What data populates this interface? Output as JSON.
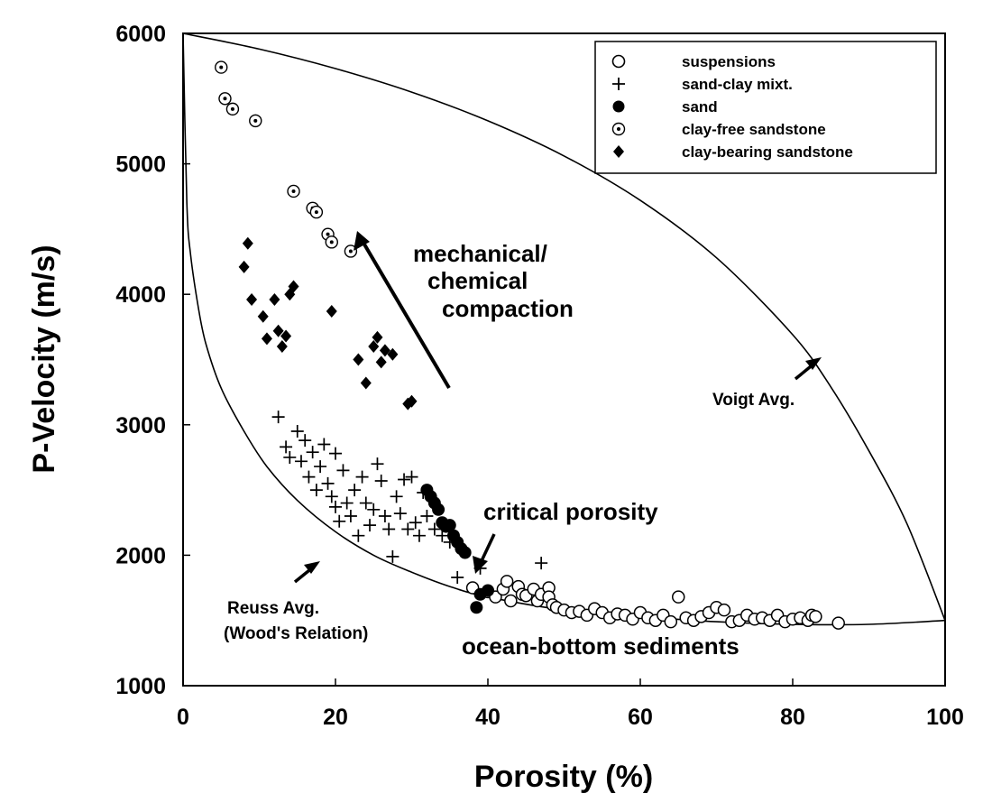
{
  "chart_data": {
    "type": "scatter",
    "xlabel": "Porosity (%)",
    "ylabel": "P-Velocity (m/s)",
    "xlim": [
      0,
      100
    ],
    "ylim": [
      1000,
      6000
    ],
    "xticks": [
      "0",
      "20",
      "40",
      "60",
      "80",
      "100"
    ],
    "yticks": [
      "1000",
      "2000",
      "3000",
      "4000",
      "5000",
      "6000"
    ],
    "legend_position": "top-right",
    "series": [
      {
        "name": "suspensions",
        "marker": "open-circle",
        "points": [
          [
            38,
            1750
          ],
          [
            40,
            1720
          ],
          [
            41,
            1680
          ],
          [
            42,
            1740
          ],
          [
            42.5,
            1800
          ],
          [
            43,
            1650
          ],
          [
            44,
            1760
          ],
          [
            44.5,
            1700
          ],
          [
            45,
            1690
          ],
          [
            46,
            1740
          ],
          [
            46.5,
            1650
          ],
          [
            47,
            1700
          ],
          [
            48,
            1750
          ],
          [
            48,
            1680
          ],
          [
            48.5,
            1620
          ],
          [
            49,
            1600
          ],
          [
            50,
            1580
          ],
          [
            51,
            1560
          ],
          [
            52,
            1570
          ],
          [
            53,
            1540
          ],
          [
            54,
            1590
          ],
          [
            55,
            1560
          ],
          [
            56,
            1520
          ],
          [
            57,
            1550
          ],
          [
            58,
            1540
          ],
          [
            59,
            1510
          ],
          [
            60,
            1560
          ],
          [
            61,
            1520
          ],
          [
            62,
            1500
          ],
          [
            63,
            1540
          ],
          [
            64,
            1490
          ],
          [
            65,
            1680
          ],
          [
            66,
            1520
          ],
          [
            67,
            1500
          ],
          [
            68,
            1530
          ],
          [
            69,
            1560
          ],
          [
            70,
            1600
          ],
          [
            71,
            1580
          ],
          [
            72,
            1490
          ],
          [
            73,
            1500
          ],
          [
            74,
            1540
          ],
          [
            75,
            1510
          ],
          [
            76,
            1520
          ],
          [
            77,
            1500
          ],
          [
            78,
            1540
          ],
          [
            79,
            1490
          ],
          [
            80,
            1510
          ],
          [
            81,
            1520
          ],
          [
            82,
            1500
          ],
          [
            82.5,
            1540
          ],
          [
            83,
            1530
          ],
          [
            86,
            1480
          ]
        ]
      },
      {
        "name": "sand-clay mixt.",
        "marker": "plus",
        "points": [
          [
            12.5,
            3060
          ],
          [
            13.5,
            2830
          ],
          [
            14,
            2750
          ],
          [
            15,
            2950
          ],
          [
            15.5,
            2720
          ],
          [
            16,
            2880
          ],
          [
            16.5,
            2600
          ],
          [
            17,
            2790
          ],
          [
            17.5,
            2500
          ],
          [
            18,
            2680
          ],
          [
            18.5,
            2850
          ],
          [
            19,
            2550
          ],
          [
            19.5,
            2450
          ],
          [
            20,
            2780
          ],
          [
            20,
            2370
          ],
          [
            20.5,
            2260
          ],
          [
            21,
            2650
          ],
          [
            21.5,
            2400
          ],
          [
            22,
            2300
          ],
          [
            22.5,
            2500
          ],
          [
            23,
            2150
          ],
          [
            23.5,
            2600
          ],
          [
            24,
            2400
          ],
          [
            24.5,
            2230
          ],
          [
            25,
            2350
          ],
          [
            25.5,
            2700
          ],
          [
            26,
            2570
          ],
          [
            26.5,
            2300
          ],
          [
            27,
            2200
          ],
          [
            27.5,
            1990
          ],
          [
            28,
            2450
          ],
          [
            28.5,
            2320
          ],
          [
            29,
            2580
          ],
          [
            29.5,
            2200
          ],
          [
            30,
            2600
          ],
          [
            30.5,
            2250
          ],
          [
            31,
            2150
          ],
          [
            31.5,
            2480
          ],
          [
            32,
            2300
          ],
          [
            33,
            2200
          ],
          [
            34,
            2150
          ],
          [
            35,
            2100
          ],
          [
            36,
            1830
          ],
          [
            39,
            1900
          ],
          [
            47,
            1940
          ]
        ]
      },
      {
        "name": "sand",
        "marker": "filled-circle",
        "points": [
          [
            32,
            2500
          ],
          [
            32.5,
            2450
          ],
          [
            33,
            2400
          ],
          [
            33.5,
            2350
          ],
          [
            34,
            2250
          ],
          [
            34.5,
            2220
          ],
          [
            35,
            2230
          ],
          [
            35.5,
            2150
          ],
          [
            36,
            2100
          ],
          [
            36.5,
            2050
          ],
          [
            37,
            2020
          ],
          [
            39,
            1700
          ],
          [
            40,
            1730
          ],
          [
            38.5,
            1600
          ]
        ]
      },
      {
        "name": "clay-free sandstone",
        "marker": "dotted-circle",
        "points": [
          [
            5,
            5740
          ],
          [
            5.5,
            5500
          ],
          [
            6.5,
            5420
          ],
          [
            9.5,
            5330
          ],
          [
            14.5,
            4790
          ],
          [
            17,
            4660
          ],
          [
            17.5,
            4630
          ],
          [
            19,
            4460
          ],
          [
            19.5,
            4400
          ],
          [
            22,
            4330
          ]
        ]
      },
      {
        "name": "clay-bearing sandstone",
        "marker": "filled-diamond",
        "points": [
          [
            8.5,
            4390
          ],
          [
            8,
            4210
          ],
          [
            9,
            3960
          ],
          [
            10.5,
            3830
          ],
          [
            11,
            3660
          ],
          [
            12,
            3960
          ],
          [
            12.5,
            3720
          ],
          [
            13,
            3600
          ],
          [
            13.5,
            3680
          ],
          [
            14,
            4000
          ],
          [
            14.5,
            4060
          ],
          [
            19.5,
            3870
          ],
          [
            23,
            3500
          ],
          [
            24,
            3320
          ],
          [
            25,
            3600
          ],
          [
            25.5,
            3670
          ],
          [
            26,
            3480
          ],
          [
            26.5,
            3570
          ],
          [
            27.5,
            3540
          ],
          [
            29.5,
            3160
          ],
          [
            30,
            3180
          ]
        ]
      }
    ],
    "curves": [
      {
        "name": "Voigt Avg.",
        "points": [
          [
            0,
            6000
          ],
          [
            10,
            5880
          ],
          [
            20,
            5730
          ],
          [
            30,
            5550
          ],
          [
            40,
            5330
          ],
          [
            50,
            5060
          ],
          [
            60,
            4720
          ],
          [
            70,
            4280
          ],
          [
            80,
            3690
          ],
          [
            85,
            3290
          ],
          [
            90,
            2800
          ],
          [
            95,
            2240
          ],
          [
            100,
            1500
          ]
        ]
      },
      {
        "name": "Reuss Avg. (Wood's Relation)",
        "points": [
          [
            0,
            6000
          ],
          [
            0.5,
            4700
          ],
          [
            1,
            4300
          ],
          [
            2,
            3900
          ],
          [
            3,
            3620
          ],
          [
            5,
            3280
          ],
          [
            8,
            2950
          ],
          [
            11,
            2680
          ],
          [
            15,
            2420
          ],
          [
            20,
            2180
          ],
          [
            25,
            2000
          ],
          [
            30,
            1870
          ],
          [
            35,
            1760
          ],
          [
            40,
            1680
          ],
          [
            50,
            1580
          ],
          [
            60,
            1530
          ],
          [
            70,
            1490
          ],
          [
            80,
            1470
          ],
          [
            90,
            1470
          ],
          [
            100,
            1500
          ]
        ]
      }
    ],
    "annotations": {
      "compaction_line1": "mechanical/",
      "compaction_line2": "chemical",
      "compaction_line3": "compaction",
      "critical_porosity": "critical porosity",
      "voigt": "Voigt Avg.",
      "reuss_line1": "Reuss Avg.",
      "reuss_line2": "(Wood's Relation)",
      "ocean": "ocean-bottom sediments"
    }
  }
}
